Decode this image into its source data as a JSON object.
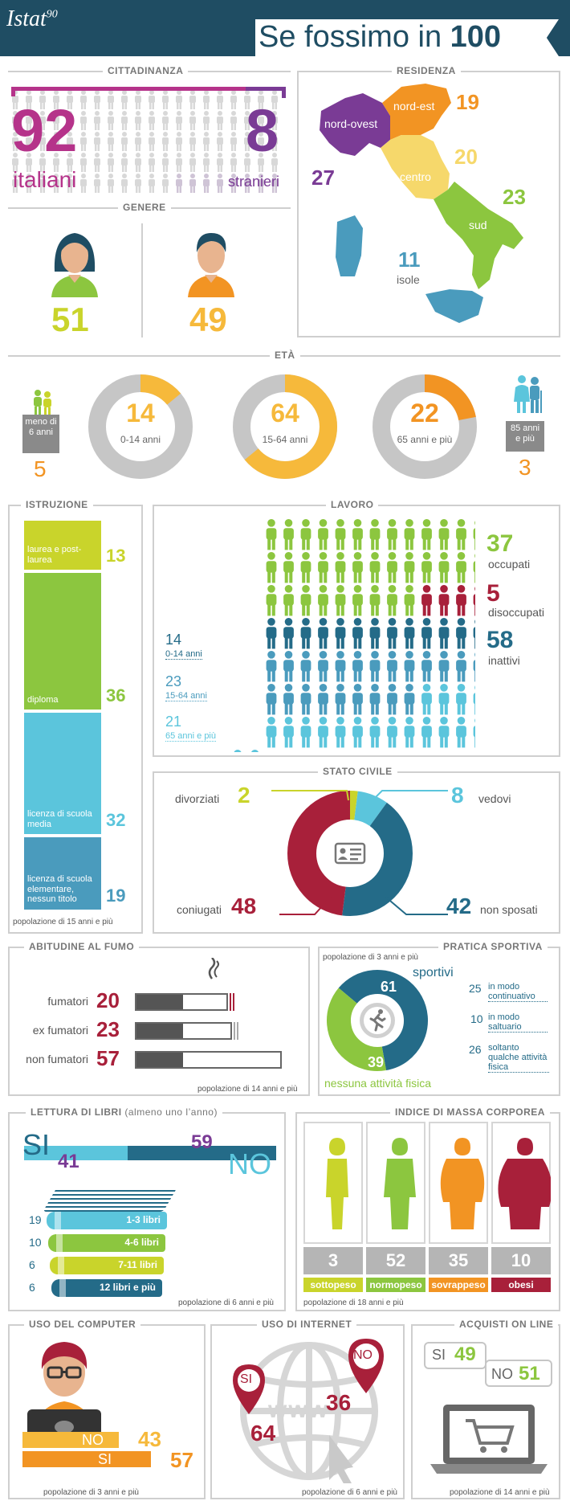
{
  "header": {
    "logo": "Istat",
    "logo_sup": "90",
    "title": "Se fossimo in",
    "title_num": "100"
  },
  "colors": {
    "navy": "#1f4d63",
    "magenta": "#b5338a",
    "purple": "#7a3b95",
    "orange": "#f29423",
    "yellow": "#f6b93b",
    "lime": "#c9d42b",
    "green": "#8cc63f",
    "teal": "#4a9bbd",
    "lightblue": "#5bc5dc",
    "darkteal": "#246b88",
    "crimson": "#a8203a",
    "gray": "#c6c6c6",
    "darkgray": "#555555"
  },
  "cittadinanza": {
    "title": "CITTADINANZA",
    "italiani_num": "92",
    "italiani_label": "italiani",
    "stranieri_num": "8",
    "stranieri_label": "stranieri",
    "italiani_value": 92,
    "stranieri_value": 8
  },
  "genere": {
    "title": "GENERE",
    "donne": "51",
    "uomini": "49"
  },
  "residenza": {
    "title": "RESIDENZA",
    "regions": [
      {
        "name": "nord-ovest",
        "value": "27"
      },
      {
        "name": "nord-est",
        "value": "19"
      },
      {
        "name": "centro",
        "value": "20"
      },
      {
        "name": "sud",
        "value": "23"
      },
      {
        "name": "isole",
        "value": "11"
      }
    ]
  },
  "eta": {
    "title": "ETÀ",
    "under6": {
      "label": "meno di 6 anni",
      "value": "5"
    },
    "over85": {
      "label": "85 anni e più",
      "value": "3"
    },
    "rings": [
      {
        "value": "14",
        "label": "0-14 anni",
        "pct": 14
      },
      {
        "value": "64",
        "label": "15-64 anni",
        "pct": 64
      },
      {
        "value": "22",
        "label": "65 anni e più",
        "pct": 22
      }
    ]
  },
  "istruzione": {
    "title": "ISTRUZIONE",
    "note": "popolazione di 15 anni e più",
    "items": [
      {
        "label": "laurea e post-laurea",
        "value": "13",
        "num": 13
      },
      {
        "label": "diploma",
        "value": "36",
        "num": 36
      },
      {
        "label": "licenza di scuola media",
        "value": "32",
        "num": 32
      },
      {
        "label": "licenza di scuola elementare, nessun titolo",
        "value": "19",
        "num": 19
      }
    ]
  },
  "lavoro": {
    "title": "LAVORO",
    "status": [
      {
        "value": "37",
        "label": "occupati",
        "num": 37
      },
      {
        "value": "5",
        "label": "disoccupati",
        "num": 5
      },
      {
        "value": "58",
        "label": "inattivi",
        "num": 58
      }
    ],
    "inactive": [
      {
        "value": "14",
        "label": "0-14 anni",
        "num": 14
      },
      {
        "value": "23",
        "label": "15-64 anni",
        "num": 23
      },
      {
        "value": "21",
        "label": "65 anni e più",
        "num": 21
      }
    ]
  },
  "stato_civile": {
    "title": "STATO CIVILE",
    "items": [
      {
        "label": "divorziati",
        "value": "2",
        "num": 2
      },
      {
        "label": "vedovi",
        "value": "8",
        "num": 8
      },
      {
        "label": "non sposati",
        "value": "42",
        "num": 42
      },
      {
        "label": "coniugati",
        "value": "48",
        "num": 48
      }
    ]
  },
  "fumo": {
    "title": "ABITUDINE AL FUMO",
    "note": "popolazione di 14 anni e più",
    "items": [
      {
        "label": "fumatori",
        "value": "20",
        "num": 20
      },
      {
        "label": "ex fumatori",
        "value": "23",
        "num": 23
      },
      {
        "label": "non fumatori",
        "value": "57",
        "num": 57
      }
    ]
  },
  "sport": {
    "title": "PRATICA SPORTIVA",
    "note": "popolazione di 3 anni e più",
    "sportivi": {
      "value": "61",
      "label": "sportivi",
      "num": 61
    },
    "nessuna": {
      "value": "39",
      "label": "nessuna attività fisica",
      "num": 39
    },
    "details": [
      {
        "value": "25",
        "label": "in modo continuativo"
      },
      {
        "value": "10",
        "label": "in modo saltuario"
      },
      {
        "value": "26",
        "label": "soltanto qualche attività fisica"
      }
    ]
  },
  "lettura": {
    "title": "LETTURA DI LIBRI",
    "title_extra": "(almeno uno l’anno)",
    "note": "popolazione di 6 anni e più",
    "si_label": "SI",
    "si_value": "41",
    "si_num": 41,
    "no_label": "NO",
    "no_value": "59",
    "no_num": 59,
    "books": [
      {
        "label": "1-3 libri",
        "value": "19"
      },
      {
        "label": "4-6 libri",
        "value": "10"
      },
      {
        "label": "7-11 libri",
        "value": "6"
      },
      {
        "label": "12 libri e più",
        "value": "6"
      }
    ]
  },
  "imc": {
    "title": "INDICE DI MASSA CORPOREA",
    "note": "popolazione di 18 anni e più",
    "items": [
      {
        "label": "sottopeso",
        "value": "3"
      },
      {
        "label": "normopeso",
        "value": "52"
      },
      {
        "label": "sovrappeso",
        "value": "35"
      },
      {
        "label": "obesi",
        "value": "10"
      }
    ]
  },
  "computer": {
    "title": "USO DEL COMPUTER",
    "note": "popolazione di 3 anni e più",
    "no_label": "NO",
    "no_value": "43",
    "no_num": 43,
    "si_label": "SI",
    "si_value": "57",
    "si_num": 57
  },
  "internet": {
    "title": "USO DI INTERNET",
    "note": "popolazione di 6 anni e più",
    "www": "www",
    "si_label": "SI",
    "si_value": "64",
    "no_label": "NO",
    "no_value": "36"
  },
  "acquisti": {
    "title": "ACQUISTI ON LINE",
    "note": "popolazione di 14 anni e più",
    "si_label": "SI",
    "si_value": "49",
    "no_label": "NO",
    "no_value": "51"
  }
}
